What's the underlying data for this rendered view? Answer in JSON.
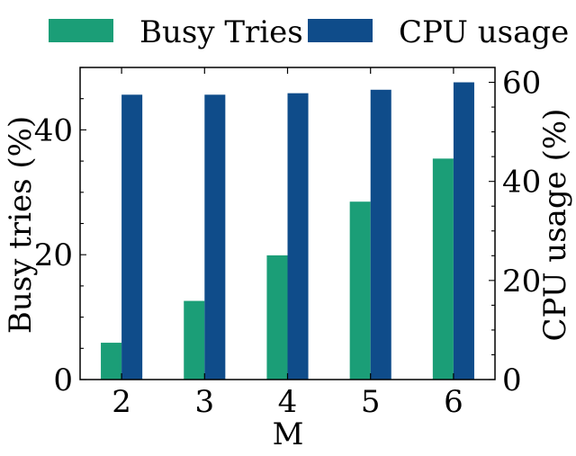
{
  "chart_data": {
    "type": "bar",
    "categories": [
      "2",
      "3",
      "4",
      "5",
      "6"
    ],
    "xlabel": "M",
    "series": [
      {
        "name": "Busy Tries",
        "axis": "left",
        "color": "#1b9e77",
        "values": [
          5.9,
          12.6,
          19.9,
          28.5,
          35.4
        ]
      },
      {
        "name": "CPU usage",
        "axis": "right",
        "color": "#0f4c8a",
        "values": [
          57.5,
          57.5,
          57.8,
          58.5,
          60.0
        ]
      }
    ],
    "left_axis": {
      "label": "Busy tries (%)",
      "ylim": [
        0,
        50
      ],
      "ticks": [
        0,
        20,
        40
      ]
    },
    "right_axis": {
      "label": "CPU usage (%)",
      "ylim": [
        0,
        63
      ],
      "ticks": [
        0,
        20,
        40,
        60
      ]
    },
    "legend": {
      "placement": "top"
    },
    "grid": false
  }
}
